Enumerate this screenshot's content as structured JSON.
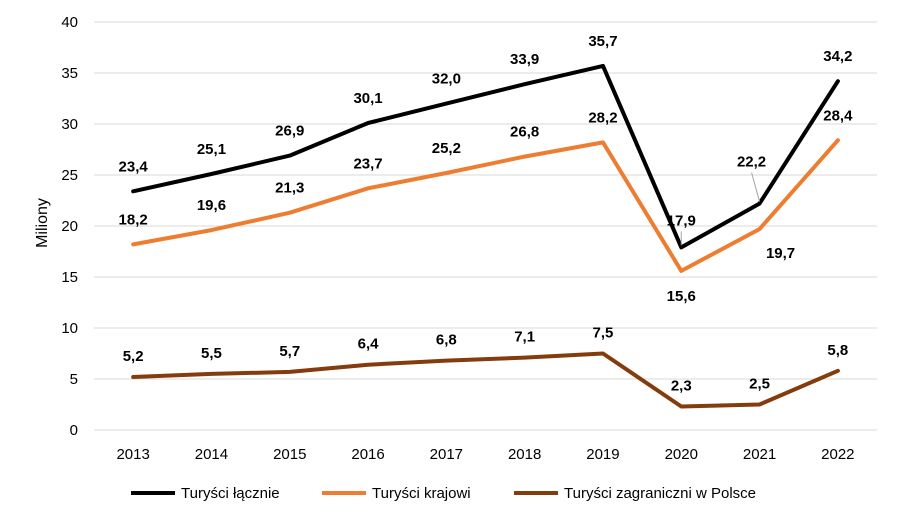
{
  "chart_data": {
    "type": "line",
    "title": "",
    "xlabel": "",
    "ylabel": "Miliony",
    "ylim": [
      0,
      40
    ],
    "yticks": [
      "0",
      "5",
      "10",
      "15",
      "20",
      "25",
      "30",
      "35",
      "40"
    ],
    "categories": [
      "2013",
      "2014",
      "2015",
      "2016",
      "2017",
      "2018",
      "2019",
      "2020",
      "2021",
      "2022"
    ],
    "grid": true,
    "legend_position": "bottom",
    "series": [
      {
        "name": "Turyści łącznie",
        "color": "#000000",
        "values": [
          23.4,
          25.1,
          26.9,
          30.1,
          32.0,
          33.9,
          35.7,
          17.9,
          22.2,
          34.2
        ],
        "labels": [
          "23,4",
          "25,1",
          "26,9",
          "30,1",
          "32,0",
          "33,9",
          "35,7",
          "17,9",
          "22,2",
          "34,2"
        ]
      },
      {
        "name": "Turyści krajowi",
        "color": "#ed7d31",
        "values": [
          18.2,
          19.6,
          21.3,
          23.7,
          25.2,
          26.8,
          28.2,
          15.6,
          19.7,
          28.4
        ],
        "labels": [
          "18,2",
          "19,6",
          "21,3",
          "23,7",
          "25,2",
          "26,8",
          "28,2",
          "15,6",
          "19,7",
          "28,4"
        ]
      },
      {
        "name": "Turyści zagraniczni w Polsce",
        "color": "#843c0c",
        "values": [
          5.2,
          5.5,
          5.7,
          6.4,
          6.8,
          7.1,
          7.5,
          2.3,
          2.5,
          5.8
        ],
        "labels": [
          "5,2",
          "5,5",
          "5,7",
          "6,4",
          "6,8",
          "7,1",
          "7,5",
          "2,3",
          "2,5",
          "5,8"
        ]
      }
    ]
  }
}
